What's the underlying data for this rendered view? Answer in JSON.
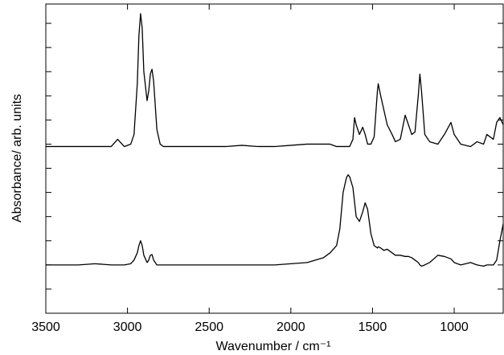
{
  "chart_data": {
    "type": "line",
    "xlabel": "Wavenumber / cm⁻¹",
    "ylabel": "Absorbance/ arb. units",
    "xlim": [
      3500,
      700
    ],
    "xticks": [
      3500,
      3000,
      2500,
      2000,
      1500,
      1000
    ],
    "ylim": [
      0,
      1.28
    ],
    "yticks": [
      0.1,
      0.2,
      0.3,
      0.4,
      0.5,
      0.6,
      0.7,
      0.8,
      0.9,
      1.0,
      1.1,
      1.2
    ],
    "x": [
      3500,
      3400,
      3300,
      3200,
      3100,
      3060,
      3020,
      2980,
      2960,
      2940,
      2930,
      2920,
      2910,
      2900,
      2880,
      2870,
      2860,
      2850,
      2840,
      2820,
      2800,
      2780,
      2700,
      2600,
      2500,
      2400,
      2300,
      2200,
      2100,
      2000,
      1900,
      1850,
      1800,
      1760,
      1720,
      1700,
      1680,
      1660,
      1650,
      1640,
      1620,
      1610,
      1600,
      1580,
      1560,
      1545,
      1530,
      1510,
      1490,
      1470,
      1465,
      1450,
      1430,
      1410,
      1380,
      1360,
      1330,
      1300,
      1280,
      1260,
      1240,
      1220,
      1210,
      1200,
      1180,
      1150,
      1100,
      1060,
      1020,
      1000,
      960,
      900,
      860,
      820,
      800,
      760,
      740,
      720,
      700
    ],
    "series": [
      {
        "color": "#000000",
        "values": [
          0.69,
          0.69,
          0.69,
          0.69,
          0.69,
          0.72,
          0.69,
          0.7,
          0.74,
          0.95,
          1.15,
          1.24,
          1.18,
          1.0,
          0.88,
          0.92,
          0.99,
          1.01,
          0.96,
          0.76,
          0.7,
          0.69,
          0.69,
          0.69,
          0.69,
          0.69,
          0.695,
          0.69,
          0.69,
          0.695,
          0.7,
          0.7,
          0.7,
          0.7,
          0.69,
          0.69,
          0.69,
          0.69,
          0.69,
          0.69,
          0.72,
          0.81,
          0.78,
          0.74,
          0.77,
          0.74,
          0.7,
          0.7,
          0.73,
          0.92,
          0.95,
          0.9,
          0.84,
          0.78,
          0.74,
          0.71,
          0.72,
          0.82,
          0.78,
          0.74,
          0.75,
          0.9,
          0.99,
          0.92,
          0.74,
          0.71,
          0.7,
          0.74,
          0.79,
          0.74,
          0.7,
          0.69,
          0.71,
          0.7,
          0.74,
          0.72,
          0.79,
          0.81,
          0.78
        ]
      },
      {
        "color": "#000000",
        "values": [
          0.2,
          0.2,
          0.2,
          0.205,
          0.2,
          0.2,
          0.2,
          0.205,
          0.22,
          0.25,
          0.28,
          0.3,
          0.28,
          0.24,
          0.21,
          0.22,
          0.24,
          0.243,
          0.22,
          0.2,
          0.2,
          0.2,
          0.2,
          0.2,
          0.2,
          0.2,
          0.2,
          0.2,
          0.2,
          0.205,
          0.21,
          0.22,
          0.23,
          0.25,
          0.28,
          0.35,
          0.5,
          0.56,
          0.573,
          0.565,
          0.52,
          0.46,
          0.4,
          0.38,
          0.42,
          0.457,
          0.43,
          0.33,
          0.28,
          0.27,
          0.275,
          0.27,
          0.26,
          0.265,
          0.25,
          0.24,
          0.24,
          0.235,
          0.235,
          0.23,
          0.22,
          0.21,
          0.2,
          0.195,
          0.2,
          0.21,
          0.24,
          0.235,
          0.225,
          0.21,
          0.2,
          0.21,
          0.2,
          0.195,
          0.2,
          0.2,
          0.22,
          0.3,
          0.37
        ]
      }
    ]
  }
}
